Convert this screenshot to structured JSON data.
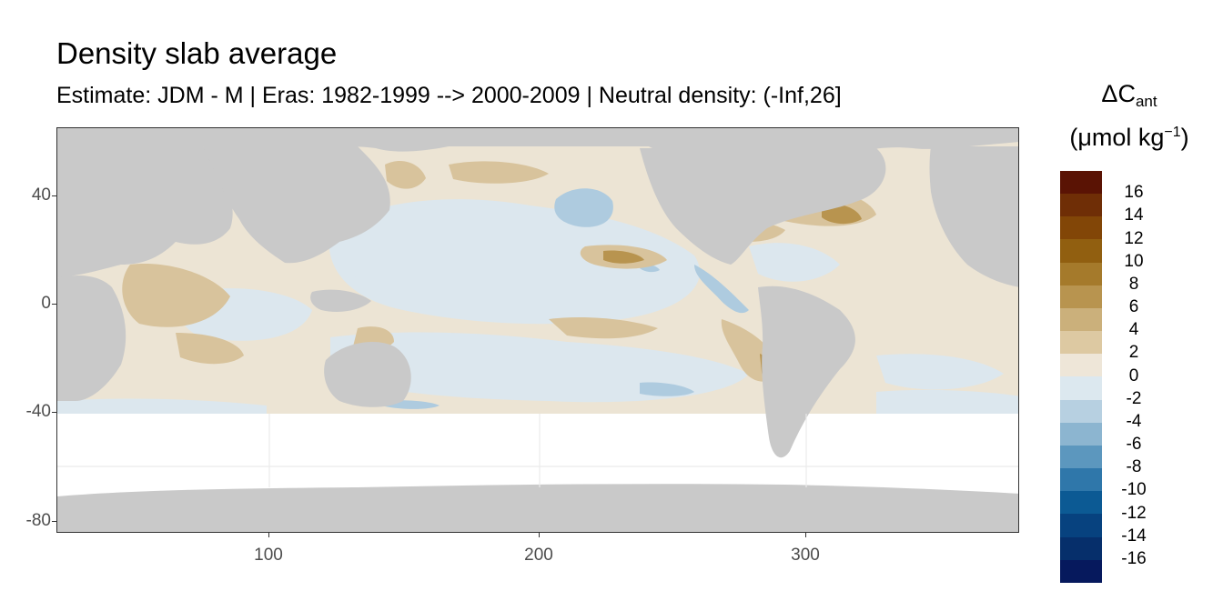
{
  "title": "Density slab average",
  "subtitle": "Estimate: JDM - M | Eras: 1982-1999 --> 2000-2009 | Neutral density: (-Inf,26]",
  "map": {
    "x_ticks": [
      "100",
      "200",
      "300"
    ],
    "y_ticks": [
      "40",
      "0",
      "-40",
      "-80"
    ],
    "land_color": "#c9c9c9",
    "grid_color": "#ebebeb",
    "no_data_color": "#ffffff"
  },
  "legend": {
    "title_main": "ΔC",
    "title_sub": "ant",
    "unit_pre": "(μmol kg",
    "unit_sup": "−1",
    "unit_post": ")",
    "labels": [
      "16",
      "14",
      "12",
      "10",
      "8",
      "6",
      "4",
      "2",
      "0",
      "-2",
      "-4",
      "-6",
      "-8",
      "-10",
      "-12",
      "-14",
      "-16"
    ],
    "colors": [
      "#5a1304",
      "#6f2e06",
      "#824607",
      "#915f10",
      "#a57a2b",
      "#b8944f",
      "#cbb07b",
      "#ddc9a2",
      "#eee6d8",
      "#dce8ef",
      "#b7d0e1",
      "#8cb5d0",
      "#5c97be",
      "#2f77aa",
      "#0c5a94",
      "#07427f",
      "#062f6b",
      "#06195d"
    ]
  }
}
